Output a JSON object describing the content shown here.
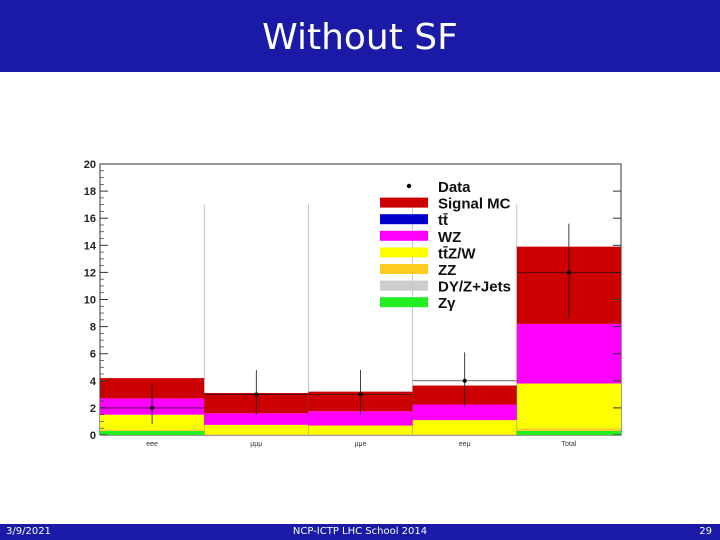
{
  "slide": {
    "title": "Without SF",
    "footer_date": "3/9/2021",
    "footer_center": "NCP-ICTP LHC School 2014",
    "page_number": "29"
  },
  "chart_data": {
    "type": "bar",
    "stacked": true,
    "title": "",
    "xlabel": "",
    "ylabel": "",
    "ylim": [
      0,
      20
    ],
    "yticks": [
      0,
      2,
      4,
      6,
      8,
      10,
      12,
      14,
      16,
      18,
      20
    ],
    "categories": [
      "eee",
      "μμμ",
      "μμe",
      "eeμ",
      "Total"
    ],
    "series": [
      {
        "name": "Zγ",
        "color": "#22ee22",
        "values": [
          0.3,
          0.0,
          0.0,
          0.0,
          0.3
        ]
      },
      {
        "name": "DY/Z+Jets",
        "color": "#cccccc",
        "values": [
          0.0,
          0.0,
          0.0,
          0.0,
          0.0
        ]
      },
      {
        "name": "ZZ",
        "color": "#ffcc22",
        "values": [
          0.1,
          0.05,
          0.05,
          0.05,
          0.2
        ]
      },
      {
        "name": "tt̄Z/W",
        "color": "#ffff00",
        "values": [
          1.1,
          0.7,
          0.65,
          1.05,
          3.3
        ]
      },
      {
        "name": "WZ",
        "color": "#ff00ff",
        "values": [
          1.2,
          0.85,
          1.05,
          1.15,
          4.4
        ]
      },
      {
        "name": "tt̄",
        "color": "#0000cc",
        "values": [
          0.0,
          0.0,
          0.0,
          0.0,
          0.0
        ]
      },
      {
        "name": "Signal MC",
        "color": "#cc0000",
        "values": [
          1.5,
          1.5,
          1.45,
          1.4,
          5.7
        ]
      }
    ],
    "data": {
      "name": "Data",
      "values": [
        2,
        3,
        3,
        4,
        12
      ],
      "err_low": [
        1.2,
        1.5,
        1.5,
        1.9,
        3.4
      ],
      "err_high": [
        1.7,
        1.8,
        1.8,
        2.1,
        3.6
      ]
    },
    "legend": {
      "placement": "top-right",
      "entries": [
        {
          "label": "Data",
          "marker": "point",
          "color": "#000000"
        },
        {
          "label": "Signal MC",
          "marker": "box",
          "color": "#cc0000"
        },
        {
          "label": "tt̄",
          "marker": "box",
          "color": "#0000cc"
        },
        {
          "label": "WZ",
          "marker": "box",
          "color": "#ff00ff"
        },
        {
          "label": "tt̄Z/W",
          "marker": "box",
          "color": "#ffff00"
        },
        {
          "label": "ZZ",
          "marker": "box",
          "color": "#ffcc22"
        },
        {
          "label": "DY/Z+Jets",
          "marker": "box",
          "color": "#cccccc"
        },
        {
          "label": "Zγ",
          "marker": "box",
          "color": "#22ee22"
        }
      ]
    }
  }
}
